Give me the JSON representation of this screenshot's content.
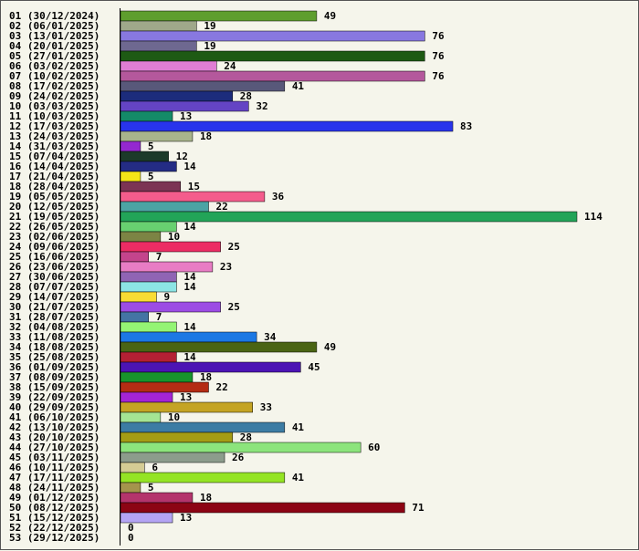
{
  "chart_data": {
    "type": "bar",
    "orientation": "horizontal",
    "title": "",
    "xlabel": "",
    "ylabel": "",
    "xlim": [
      0,
      114
    ],
    "grid": false,
    "legend": "none",
    "categories": [
      "01 (30/12/2024)",
      "02 (06/01/2025)",
      "03 (13/01/2025)",
      "04 (20/01/2025)",
      "05 (27/01/2025)",
      "06 (03/02/2025)",
      "07 (10/02/2025)",
      "08 (17/02/2025)",
      "09 (24/02/2025)",
      "10 (03/03/2025)",
      "11 (10/03/2025)",
      "12 (17/03/2025)",
      "13 (24/03/2025)",
      "14 (31/03/2025)",
      "15 (07/04/2025)",
      "16 (14/04/2025)",
      "17 (21/04/2025)",
      "18 (28/04/2025)",
      "19 (05/05/2025)",
      "20 (12/05/2025)",
      "21 (19/05/2025)",
      "22 (26/05/2025)",
      "23 (02/06/2025)",
      "24 (09/06/2025)",
      "25 (16/06/2025)",
      "26 (23/06/2025)",
      "27 (30/06/2025)",
      "28 (07/07/2025)",
      "29 (14/07/2025)",
      "30 (21/07/2025)",
      "31 (28/07/2025)",
      "32 (04/08/2025)",
      "33 (11/08/2025)",
      "34 (18/08/2025)",
      "35 (25/08/2025)",
      "36 (01/09/2025)",
      "37 (08/09/2025)",
      "38 (15/09/2025)",
      "39 (22/09/2025)",
      "40 (29/09/2025)",
      "41 (06/10/2025)",
      "42 (13/10/2025)",
      "43 (20/10/2025)",
      "44 (27/10/2025)",
      "45 (03/11/2025)",
      "46 (10/11/2025)",
      "47 (17/11/2025)",
      "48 (24/11/2025)",
      "49 (01/12/2025)",
      "50 (08/12/2025)",
      "51 (15/12/2025)",
      "52 (22/12/2025)",
      "53 (29/12/2025)"
    ],
    "values": [
      49,
      19,
      76,
      19,
      76,
      24,
      76,
      41,
      28,
      32,
      13,
      83,
      18,
      5,
      12,
      14,
      5,
      15,
      36,
      22,
      114,
      14,
      10,
      25,
      7,
      23,
      14,
      14,
      9,
      25,
      7,
      14,
      34,
      49,
      14,
      45,
      18,
      22,
      13,
      33,
      10,
      41,
      28,
      60,
      26,
      6,
      41,
      5,
      18,
      71,
      13,
      0,
      0
    ],
    "colors": [
      "#5e9e2e",
      "#9fa88a",
      "#8878e0",
      "#6e6890",
      "#1e5a14",
      "#e07ed4",
      "#b4589c",
      "#58587a",
      "#1c2c7c",
      "#6444c4",
      "#148a68",
      "#2834ec",
      "#a8b48c",
      "#9428d0",
      "#1c3a2a",
      "#242c84",
      "#f4e418",
      "#7c3454",
      "#f45c8c",
      "#4ca4a4",
      "#22a458",
      "#68d070",
      "#7c8444",
      "#ec2c64",
      "#c4448c",
      "#e87cc4",
      "#9064b4",
      "#8ce4e4",
      "#f8dc34",
      "#9c4ce4",
      "#4474a4",
      "#94f474",
      "#1c78e4",
      "#4a6414",
      "#b42034",
      "#4c14b4",
      "#18942c",
      "#b42c14",
      "#a424d4",
      "#c4a424",
      "#a4e494",
      "#3c7ca4",
      "#a49c14",
      "#8ce47c",
      "#8c9c8c",
      "#d4cc94",
      "#94e424",
      "#a4944c",
      "#b4346c",
      "#8c0414",
      "#b4a4f4",
      "#2c0c4c",
      "#1c6c1c"
    ]
  }
}
